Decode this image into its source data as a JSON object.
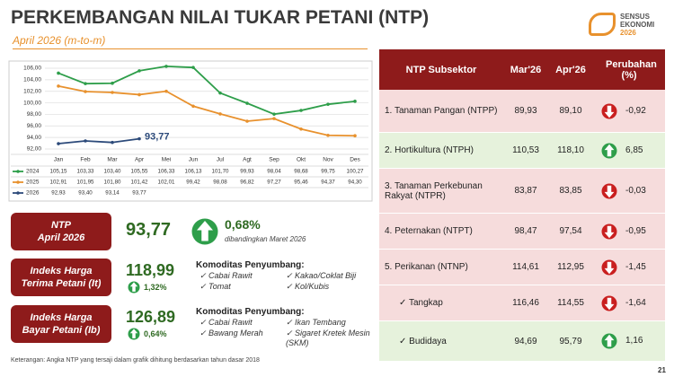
{
  "header": {
    "title": "PERKEMBANGAN NILAI TUKAR PETANI (NTP)",
    "subtitle": "April 2026 (m-to-m)",
    "logo": [
      "SENSUS",
      "EKONOMI",
      "2026"
    ]
  },
  "chart_data": {
    "type": "line",
    "categories": [
      "Jan",
      "Feb",
      "Mar",
      "Apr",
      "Mei",
      "Jun",
      "Jul",
      "Agt",
      "Sep",
      "Okt",
      "Nov",
      "Des"
    ],
    "ylim": [
      92,
      106
    ],
    "yticks": [
      {
        "value": 92,
        "label": "92,00"
      },
      {
        "value": 94,
        "label": "94,00"
      },
      {
        "value": 96,
        "label": "96,00"
      },
      {
        "value": 98,
        "label": "98,00"
      },
      {
        "value": 100,
        "label": "100,00"
      },
      {
        "value": 102,
        "label": "102,00"
      },
      {
        "value": 104,
        "label": "104,00"
      },
      {
        "value": 106,
        "label": "106,00"
      }
    ],
    "grid": true,
    "series": [
      {
        "name": "2024",
        "color": "#2e9e4a",
        "values": [
          105.15,
          103.33,
          103.4,
          105.55,
          106.33,
          106.13,
          101.7,
          99.93,
          98.04,
          98.68,
          99.75,
          100.27
        ],
        "value_labels": [
          "105,15",
          "103,33",
          "103,40",
          "105,55",
          "106,33",
          "106,13",
          "101,70",
          "99,93",
          "98,04",
          "98,68",
          "99,75",
          "100,27"
        ]
      },
      {
        "name": "2025",
        "color": "#e8912d",
        "values": [
          102.91,
          101.95,
          101.8,
          101.42,
          102.01,
          99.42,
          98.08,
          96.82,
          97.27,
          95.46,
          94.37,
          94.3
        ],
        "value_labels": [
          "102,91",
          "101,95",
          "101,80",
          "101,42",
          "102,01",
          "99,42",
          "98,08",
          "96,82",
          "97,27",
          "95,46",
          "94,37",
          "94,30"
        ]
      },
      {
        "name": "2026",
        "color": "#2c4a7a",
        "values": [
          92.93,
          93.4,
          93.14,
          93.77,
          null,
          null,
          null,
          null,
          null,
          null,
          null,
          null
        ],
        "value_labels": [
          "92,93",
          "93,40",
          "93,14",
          "93,77",
          null,
          null,
          null,
          null,
          null,
          null,
          null,
          null
        ]
      }
    ]
  },
  "panels": [
    {
      "label": [
        "NTP",
        "April 2026"
      ],
      "value": "93,77",
      "change": "0,68%",
      "note": "dibandingkan Maret 2026"
    },
    {
      "label": [
        "Indeks Harga",
        "Terima Petani (It)"
      ],
      "value": "118,99",
      "change": "1,32%",
      "heading": "Komoditas Penyumbang:",
      "items": [
        "Cabai Rawit",
        "Kakao/Coklat Biji",
        "Tomat",
        "Kol/Kubis"
      ]
    },
    {
      "label": [
        "Indeks Harga",
        "Bayar Petani (Ib)"
      ],
      "value": "126,89",
      "change": "0,64%",
      "heading": "Komoditas Penyumbang:",
      "items": [
        "Cabai Rawit",
        "Ikan Tembang",
        "Bawang Merah",
        "Sigaret Kretek Mesin (SKM)"
      ]
    }
  ],
  "table": {
    "header": [
      "NTP Subsektor",
      "Mar'26",
      "Apr'26",
      "Perubahan (%)"
    ],
    "rows": [
      [
        "1. Tanaman Pangan (NTPP)",
        "89,93",
        "89,10",
        "-0,92"
      ],
      [
        "2. Hortikultura (NTPH)",
        "110,53",
        "118,10",
        "6,85"
      ],
      [
        "3. Tanaman Perkebunan Rakyat (NTPR)",
        "83,87",
        "83,85",
        "-0,03"
      ],
      [
        "4. Peternakan (NTPT)",
        "98,47",
        "97,54",
        "-0,95"
      ],
      [
        "5. Perikanan (NTNP)",
        "114,61",
        "112,95",
        "-1,45"
      ],
      [
        "✓ Tangkap",
        "116,46",
        "114,55",
        "-1,64"
      ],
      [
        "✓ Budidaya",
        "94,69",
        "95,79",
        "1,16"
      ]
    ]
  },
  "footer": {
    "note": "Keterangan: Angka NTP yang tersaji dalam grafik dihitung berdasarkan tahun dasar 2018",
    "page": "21"
  }
}
